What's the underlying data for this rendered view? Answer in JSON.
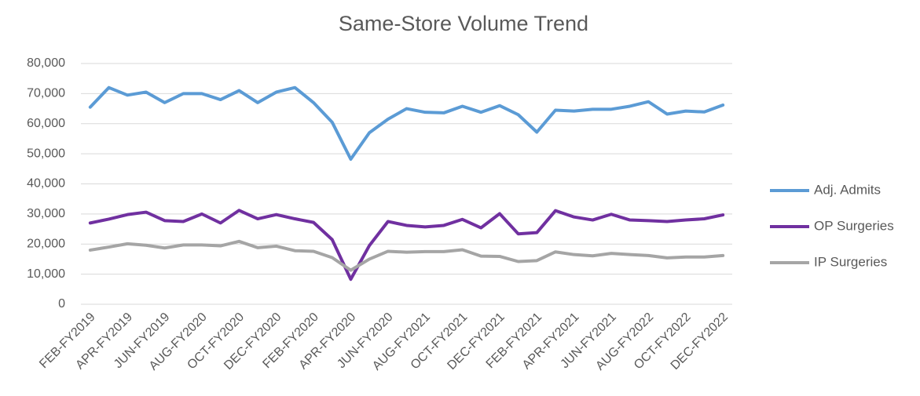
{
  "chart_data": {
    "type": "line",
    "title": "Same-Store Volume Trend",
    "categories": [
      "FEB-FY2019",
      null,
      "APR-FY2019",
      null,
      "JUN-FY2019",
      null,
      "AUG-FY2020",
      null,
      "OCT-FY2020",
      null,
      "DEC-FY2020",
      null,
      "FEB-FY2020",
      null,
      "APR-FY2020",
      null,
      "JUN-FY2020",
      null,
      "AUG-FY2021",
      null,
      "OCT-FY2021",
      null,
      "DEC-FY2021",
      null,
      "FEB-FY2021",
      null,
      "APR-FY2021",
      null,
      "JUN-FY2021",
      null,
      "AUG-FY2022",
      null,
      "OCT-FY2022",
      null,
      "DEC-FY2022"
    ],
    "series": [
      {
        "name": "Adj. Admits",
        "color": "#5b9bd5",
        "values": [
          65500,
          72000,
          69500,
          70500,
          67000,
          70000,
          70000,
          68000,
          71000,
          67000,
          70500,
          72000,
          67000,
          60500,
          48200,
          57000,
          61500,
          65000,
          63800,
          63600,
          65800,
          63800,
          66000,
          63000,
          57200,
          64500,
          64200,
          64800,
          64800,
          65800,
          67300,
          63200,
          64200,
          63900,
          66200
        ]
      },
      {
        "name": "OP Surgeries",
        "color": "#7030a0",
        "values": [
          27000,
          28300,
          29800,
          30600,
          27800,
          27500,
          30000,
          27000,
          31200,
          28400,
          29800,
          28400,
          27200,
          21500,
          8300,
          19500,
          27500,
          26200,
          25700,
          26200,
          28200,
          25400,
          30100,
          23400,
          23800,
          31100,
          29000,
          28000,
          29900,
          28000,
          27800,
          27500,
          28000,
          28400,
          29700
        ]
      },
      {
        "name": "IP Surgeries",
        "color": "#a5a5a5",
        "values": [
          18000,
          19000,
          20100,
          19600,
          18700,
          19700,
          19700,
          19400,
          20900,
          18800,
          19300,
          17800,
          17600,
          15500,
          11300,
          15000,
          17600,
          17300,
          17500,
          17500,
          18100,
          16000,
          15900,
          14200,
          14500,
          17400,
          16500,
          16100,
          16900,
          16500,
          16200,
          15400,
          15700,
          15700,
          16200
        ]
      }
    ],
    "ylim": [
      0,
      80000
    ],
    "yticks": [
      0,
      {
        "value": 10000,
        "label": "10,000"
      },
      {
        "value": 20000,
        "label": "20,000"
      },
      {
        "value": 30000,
        "label": "30,000"
      },
      {
        "value": 40000,
        "label": "40,000"
      },
      {
        "value": 50000,
        "label": "50,000"
      },
      {
        "value": 60000,
        "label": "60,000"
      },
      {
        "value": 70000,
        "label": "70,000"
      },
      {
        "value": 80000,
        "label": "80,000"
      }
    ],
    "grid": true,
    "legend": "right"
  }
}
